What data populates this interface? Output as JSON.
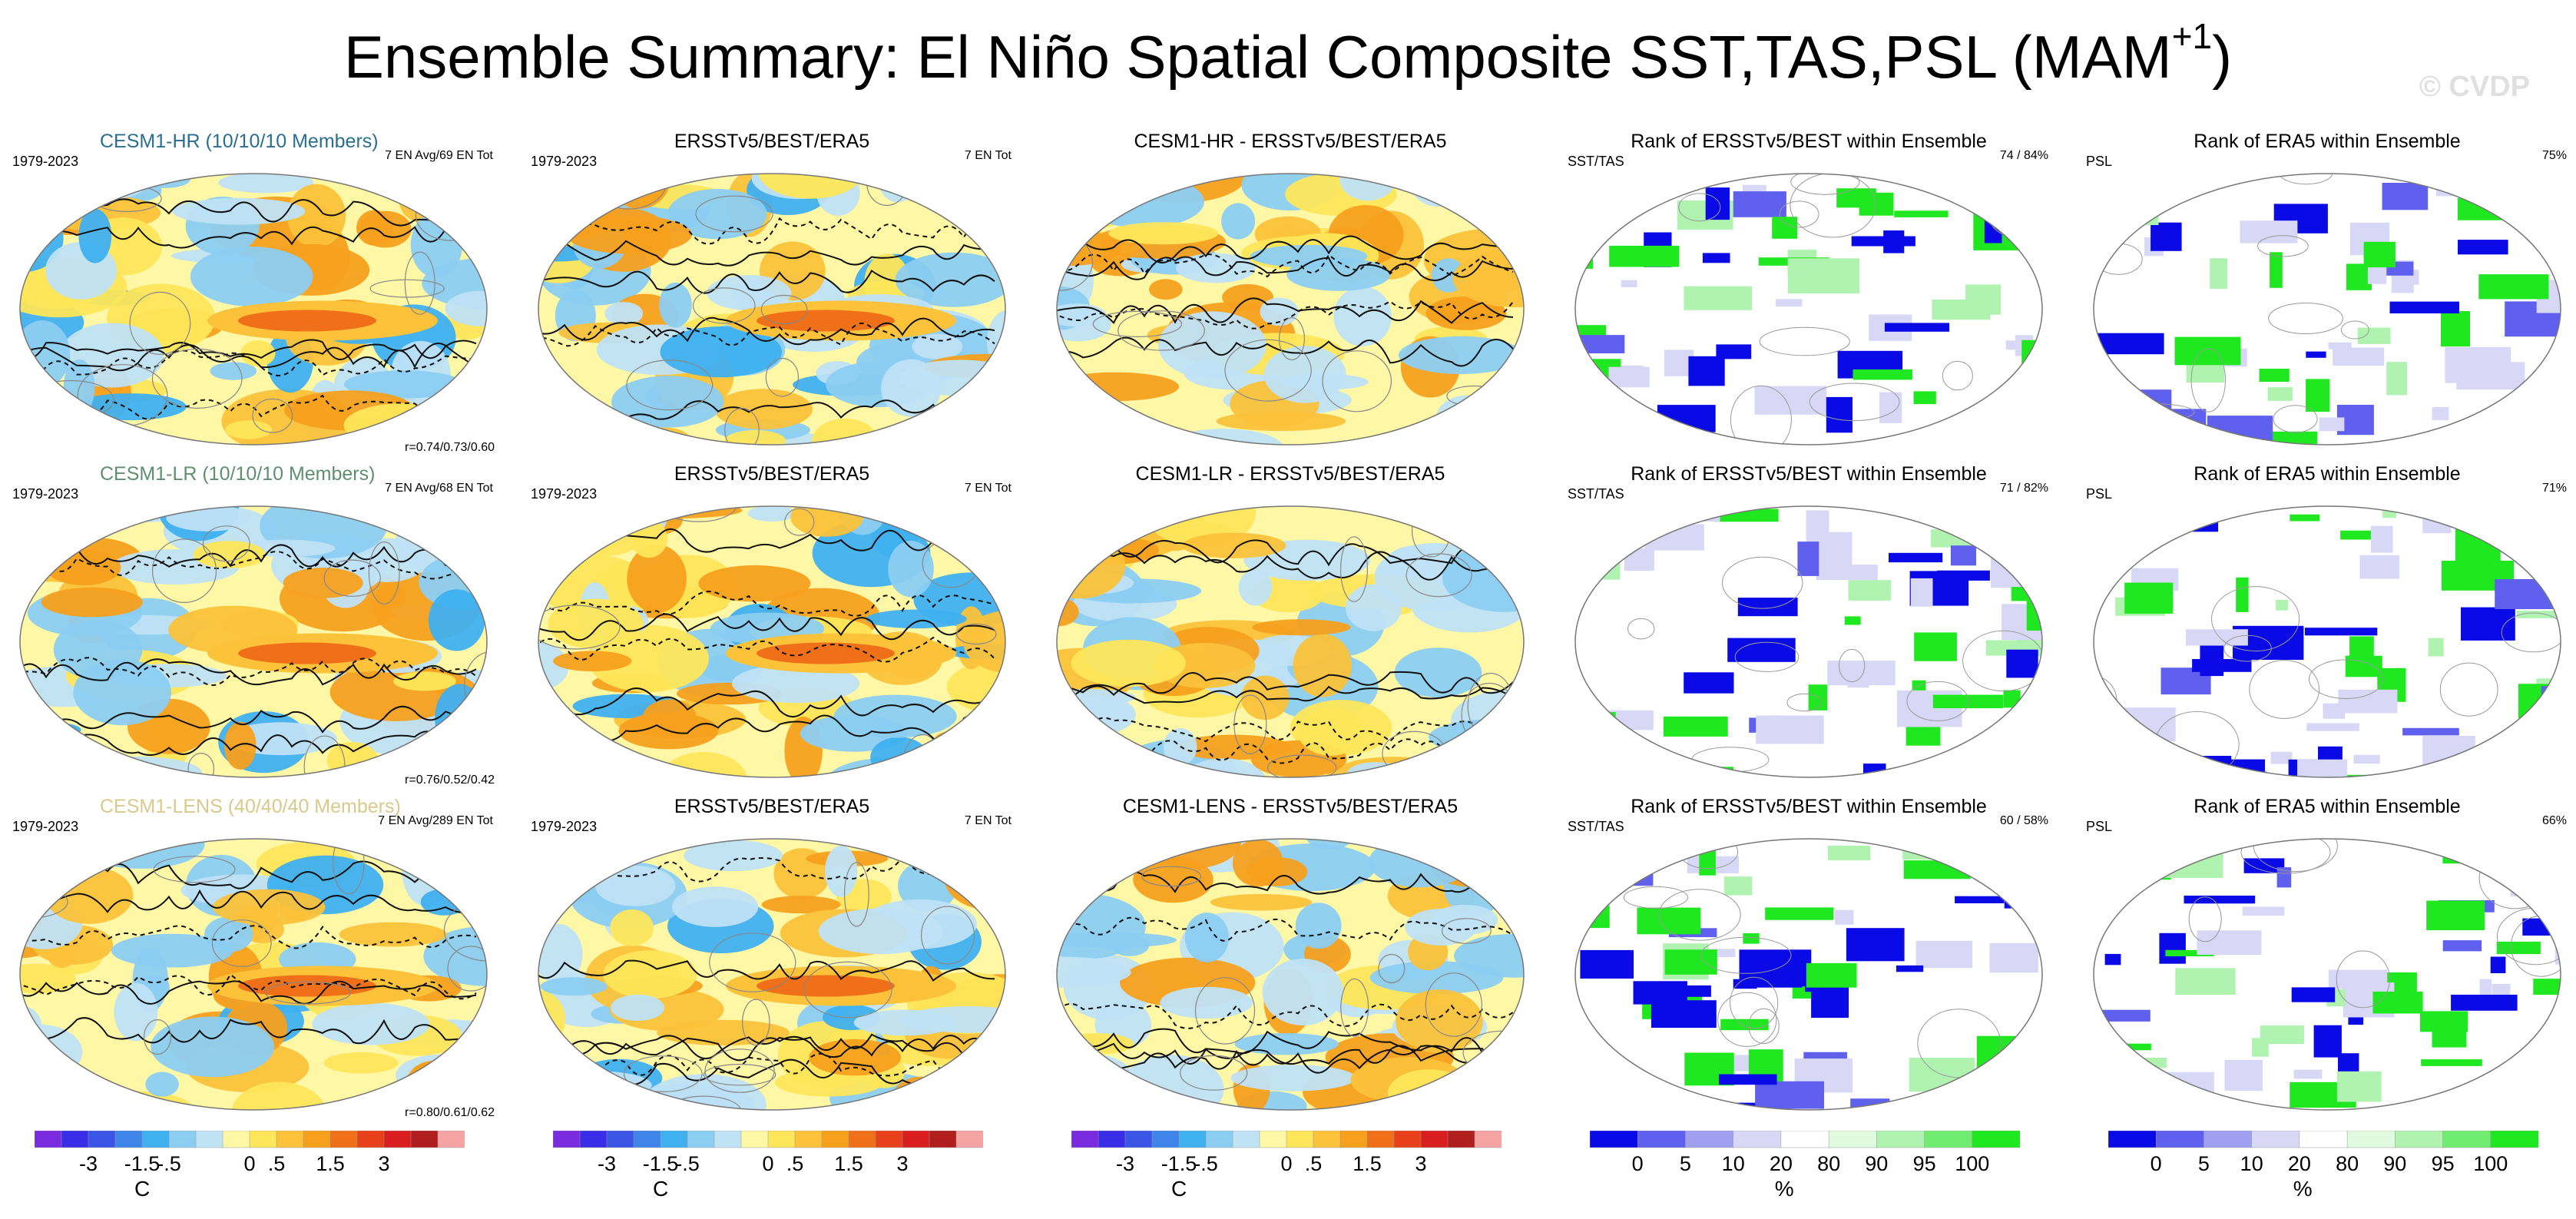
{
  "chart_data": {
    "type": "heatmap",
    "title_main": "Ensemble Summary: El Niño Spatial Composite SST,TAS,PSL (MAM",
    "title_sup": "+1",
    "title_end": ")",
    "watermark": "© CVDP",
    "rows": [
      {
        "model_title": "CESM1-HR (10/10/10 Members)",
        "model_color": "#2a6f8f",
        "period": "1979-2023",
        "model_info": "7 EN Avg/69 EN Tot",
        "corr": "r=0.74/0.73/0.60",
        "obs_title": "ERSSTv5/BEST/ERA5",
        "obs_period": "1979-2023",
        "obs_info": "7 EN Tot",
        "diff_title": "CESM1-HR - ERSSTv5/BEST/ERA5",
        "rank1_title": "Rank of ERSSTv5/BEST within Ensemble",
        "rank1_left": "SST/TAS",
        "rank1_right": "74 /  84%",
        "rank2_title": "Rank of ERA5 within Ensemble",
        "rank2_left": "PSL",
        "rank2_right": "75%"
      },
      {
        "model_title": "CESM1-LR (10/10/10 Members)",
        "model_color": "#5f8f6f",
        "period": "1979-2023",
        "model_info": "7 EN Avg/68 EN Tot",
        "corr": "r=0.76/0.52/0.42",
        "obs_title": "ERSSTv5/BEST/ERA5",
        "obs_period": "1979-2023",
        "obs_info": "7 EN Tot",
        "diff_title": "CESM1-LR - ERSSTv5/BEST/ERA5",
        "rank1_title": "Rank of ERSSTv5/BEST within Ensemble",
        "rank1_left": "SST/TAS",
        "rank1_right": "71 /  82%",
        "rank2_title": "Rank of ERA5 within Ensemble",
        "rank2_left": "PSL",
        "rank2_right": "71%"
      },
      {
        "model_title": "CESM1-LENS (40/40/40 Members)",
        "model_color": "#d9c98a",
        "period": "1979-2023",
        "model_info": "7 EN Avg/289 EN Tot",
        "corr": "r=0.80/0.61/0.62",
        "obs_title": "ERSSTv5/BEST/ERA5",
        "obs_period": "1979-2023",
        "obs_info": "7 EN Tot",
        "diff_title": "CESM1-LENS - ERSSTv5/BEST/ERA5",
        "rank1_title": "Rank of ERSSTv5/BEST within Ensemble",
        "rank1_left": "SST/TAS",
        "rank1_right": "60 /  58%",
        "rank2_title": "Rank of ERA5 within Ensemble",
        "rank2_left": "PSL",
        "rank2_right": "66%"
      }
    ],
    "temp_colorbar": {
      "unit": "C",
      "colors": [
        "#7a2be0",
        "#3a2de8",
        "#3b55e6",
        "#3f84e8",
        "#3fb0f0",
        "#8ccdf2",
        "#bfe2f5",
        "#fdf7a6",
        "#fee65a",
        "#fbc23a",
        "#f7a01e",
        "#f0701a",
        "#e8401a",
        "#d81e1e",
        "#b01e1e",
        "#f5a3a3"
      ],
      "tick_labels": [
        "-3",
        "-1.5",
        "-.5",
        "0",
        ".5",
        "1.5",
        "3"
      ]
    },
    "rank_colorbar": {
      "unit": "%",
      "colors": [
        "#0a0ae6",
        "#6060ee",
        "#a0a0f0",
        "#d8d8f6",
        "#ffffff",
        "#e0fae0",
        "#b0f2b0",
        "#70ec70",
        "#20e820"
      ],
      "tick_labels": [
        "0",
        "5",
        "10",
        "20",
        "80",
        "90",
        "95",
        "100"
      ]
    }
  }
}
